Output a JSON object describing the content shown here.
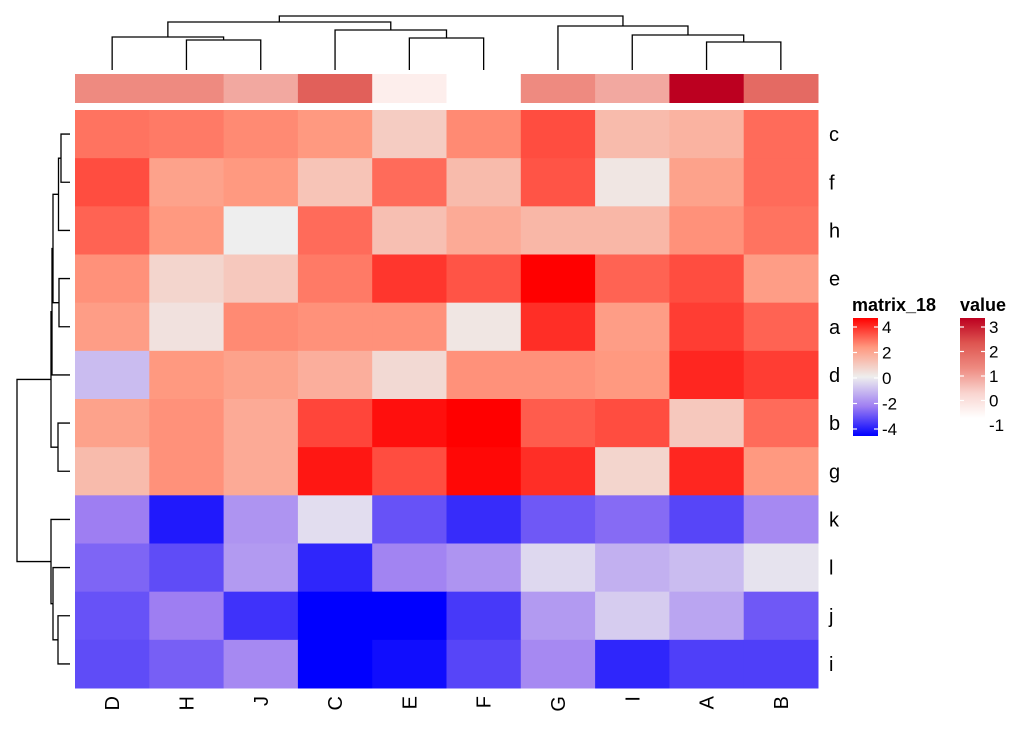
{
  "chart_data": {
    "type": "heatmap",
    "columns": [
      "D",
      "H",
      "J",
      "C",
      "E",
      "F",
      "G",
      "I",
      "A",
      "B"
    ],
    "rows": [
      "c",
      "f",
      "h",
      "e",
      "a",
      "d",
      "b",
      "g",
      "k",
      "l",
      "j",
      "i"
    ],
    "values": [
      [
        2.5,
        2.4,
        2.2,
        2.0,
        0.8,
        2.2,
        3.0,
        1.2,
        1.4,
        2.6
      ],
      [
        3.0,
        1.8,
        2.0,
        1.0,
        2.6,
        1.2,
        2.9,
        0.2,
        1.8,
        2.6
      ],
      [
        2.7,
        2.0,
        0.0,
        2.6,
        1.1,
        1.6,
        1.3,
        1.3,
        2.1,
        2.5
      ],
      [
        2.1,
        0.6,
        0.9,
        2.4,
        3.3,
        2.9,
        4.0,
        2.7,
        3.0,
        1.9
      ],
      [
        1.9,
        0.3,
        2.2,
        2.1,
        2.1,
        0.2,
        3.4,
        1.9,
        3.2,
        2.7
      ],
      [
        -0.9,
        2.0,
        1.8,
        1.5,
        0.5,
        2.1,
        2.1,
        2.0,
        3.5,
        3.2
      ],
      [
        1.8,
        2.1,
        1.6,
        3.1,
        3.8,
        4.1,
        2.8,
        3.0,
        0.9,
        2.6
      ],
      [
        1.2,
        2.1,
        1.6,
        3.7,
        3.0,
        3.9,
        3.4,
        0.6,
        3.5,
        2.0
      ],
      [
        -2.0,
        -3.6,
        -1.6,
        -0.3,
        -2.7,
        -3.3,
        -2.6,
        -2.3,
        -2.9,
        -1.8
      ],
      [
        -2.4,
        -2.8,
        -1.5,
        -3.4,
        -1.9,
        -1.6,
        -0.4,
        -1.1,
        -0.9,
        -0.2
      ],
      [
        -2.7,
        -2.0,
        -3.2,
        -4.4,
        -4.4,
        -3.1,
        -1.5,
        -0.6,
        -1.3,
        -2.6
      ],
      [
        -2.8,
        -2.5,
        -1.8,
        -4.2,
        -3.8,
        -2.9,
        -1.8,
        -3.4,
        -3.0,
        -3.0
      ]
    ],
    "column_annotation": {
      "name": "value",
      "values": [
        1.0,
        1.0,
        0.6,
        1.8,
        -0.6,
        -1.0,
        1.0,
        0.6,
        3.0,
        1.6
      ]
    },
    "legends": [
      {
        "title": "matrix_18",
        "ticks": [
          "4",
          "2",
          "0",
          "-2",
          "-4"
        ],
        "range": [
          -4,
          4
        ],
        "colors": {
          "-4": "#0000FF",
          "0": "#EEEEEE",
          "4": "#FF0000"
        }
      },
      {
        "title": "value",
        "ticks": [
          "3",
          "2",
          "1",
          "0",
          "-1"
        ],
        "range": [
          -1,
          3
        ],
        "colors": {
          "-1": "#FFFFFF",
          "3": "#BC0020"
        }
      }
    ],
    "row_dendrogram": true,
    "column_dendrogram": true
  }
}
